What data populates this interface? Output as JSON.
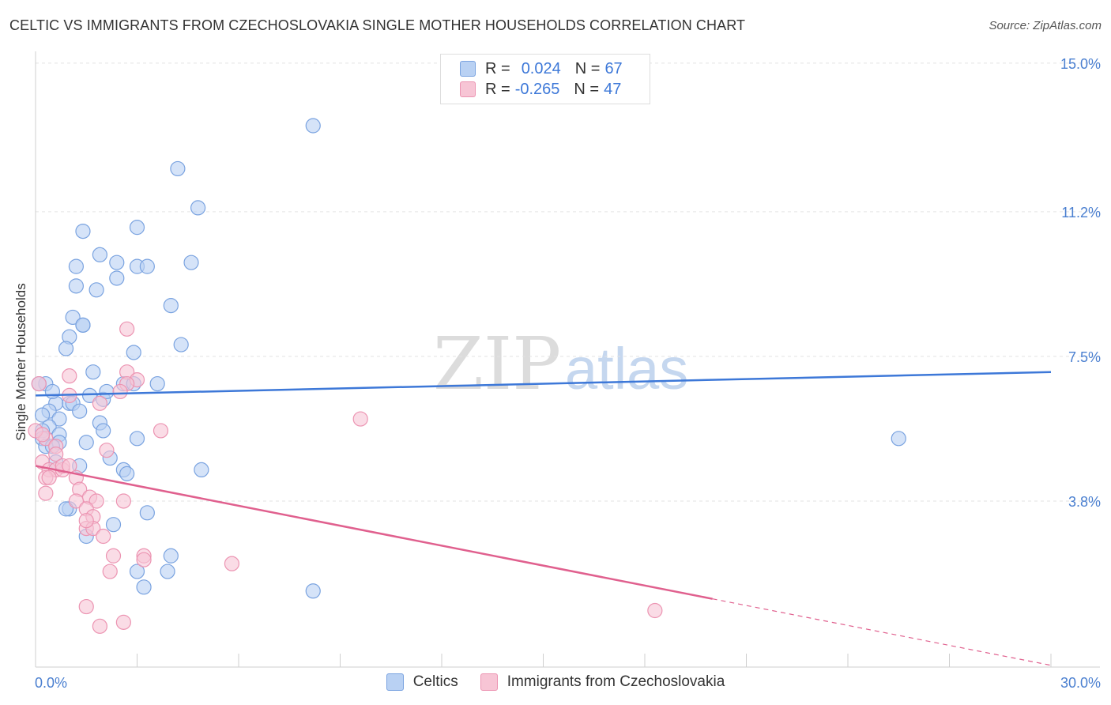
{
  "title": "CELTIC VS IMMIGRANTS FROM CZECHOSLOVAKIA SINGLE MOTHER HOUSEHOLDS CORRELATION CHART",
  "source": "Source: ZipAtlas.com",
  "watermark": {
    "zip": "ZIP",
    "atlas": "atlas"
  },
  "colors": {
    "blue": "#3d78d8",
    "blue_fill": "#b9d1f3",
    "pink": "#e0608e",
    "pink_fill": "#f7c5d5",
    "tick_label": "#4a7fd0"
  },
  "legend_top": {
    "rows": [
      {
        "r_label": "R =",
        "r_value": "0.024",
        "n_label": "N =",
        "n_value": "67"
      },
      {
        "r_label": "R =",
        "r_value": "-0.265",
        "n_label": "N =",
        "n_value": "47"
      }
    ]
  },
  "legend_bottom": {
    "celtics": "Celtics",
    "immigrants": "Immigrants from Czechoslovakia"
  },
  "chart_data": {
    "type": "scatter",
    "xlabel": "",
    "ylabel": "Single Mother Households",
    "xlim": [
      0,
      30
    ],
    "ylim": [
      0,
      15.3
    ],
    "x_tick_labels": [
      "0.0%",
      "30.0%"
    ],
    "y_ticks": [
      3.8,
      7.5,
      11.2,
      15.0
    ],
    "y_tick_labels": [
      "3.8%",
      "7.5%",
      "11.2%",
      "15.0%"
    ],
    "series": [
      {
        "name": "Celtics",
        "color": "#3d78d8",
        "trend": {
          "x": [
            0,
            30
          ],
          "y": [
            6.5,
            7.1
          ]
        },
        "points": [
          [
            8.2,
            13.4
          ],
          [
            4.2,
            12.3
          ],
          [
            4.8,
            11.3
          ],
          [
            3.0,
            10.8
          ],
          [
            1.4,
            10.7
          ],
          [
            1.9,
            10.1
          ],
          [
            2.4,
            9.9
          ],
          [
            3.0,
            9.8
          ],
          [
            1.2,
            9.8
          ],
          [
            3.3,
            9.8
          ],
          [
            4.6,
            9.9
          ],
          [
            2.4,
            9.5
          ],
          [
            1.2,
            9.3
          ],
          [
            1.8,
            9.2
          ],
          [
            4.0,
            8.8
          ],
          [
            1.1,
            8.5
          ],
          [
            1.4,
            8.3
          ],
          [
            1.4,
            8.3
          ],
          [
            1.0,
            8.0
          ],
          [
            0.9,
            7.7
          ],
          [
            2.9,
            7.6
          ],
          [
            4.3,
            7.8
          ],
          [
            1.7,
            7.1
          ],
          [
            0.3,
            6.8
          ],
          [
            2.6,
            6.8
          ],
          [
            2.9,
            6.8
          ],
          [
            3.6,
            6.8
          ],
          [
            1.6,
            6.5
          ],
          [
            2.0,
            6.4
          ],
          [
            2.1,
            6.6
          ],
          [
            0.6,
            6.3
          ],
          [
            1.0,
            6.3
          ],
          [
            1.1,
            6.3
          ],
          [
            0.4,
            6.1
          ],
          [
            0.2,
            6.0
          ],
          [
            0.7,
            5.9
          ],
          [
            1.3,
            6.1
          ],
          [
            1.9,
            5.8
          ],
          [
            0.4,
            5.7
          ],
          [
            0.2,
            5.6
          ],
          [
            0.2,
            5.4
          ],
          [
            0.7,
            5.5
          ],
          [
            2.0,
            5.6
          ],
          [
            3.0,
            5.4
          ],
          [
            0.7,
            5.3
          ],
          [
            1.5,
            5.3
          ],
          [
            0.3,
            5.2
          ],
          [
            0.5,
            5.2
          ],
          [
            0.6,
            4.8
          ],
          [
            2.2,
            4.9
          ],
          [
            1.3,
            4.7
          ],
          [
            2.6,
            4.6
          ],
          [
            2.7,
            4.5
          ],
          [
            4.9,
            4.6
          ],
          [
            1.0,
            3.6
          ],
          [
            0.9,
            3.6
          ],
          [
            3.3,
            3.5
          ],
          [
            2.3,
            3.2
          ],
          [
            1.5,
            2.9
          ],
          [
            4.0,
            2.4
          ],
          [
            3.0,
            2.0
          ],
          [
            3.9,
            2.0
          ],
          [
            3.2,
            1.6
          ],
          [
            8.2,
            1.5
          ],
          [
            25.5,
            5.4
          ],
          [
            0.1,
            6.8
          ],
          [
            0.5,
            6.6
          ]
        ]
      },
      {
        "name": "Immigrants from Czechoslovakia",
        "color": "#e0608e",
        "trend": {
          "x": [
            0,
            20
          ],
          "y": [
            4.7,
            1.3
          ]
        },
        "trend_dashed": {
          "x": [
            20,
            30
          ],
          "y": [
            1.3,
            -0.4
          ]
        },
        "points": [
          [
            0.1,
            6.8
          ],
          [
            1.0,
            7.0
          ],
          [
            2.7,
            7.1
          ],
          [
            3.0,
            6.9
          ],
          [
            2.7,
            6.8
          ],
          [
            1.0,
            6.5
          ],
          [
            2.5,
            6.6
          ],
          [
            1.9,
            6.3
          ],
          [
            3.7,
            5.6
          ],
          [
            9.6,
            5.9
          ],
          [
            2.7,
            8.2
          ],
          [
            0.3,
            5.4
          ],
          [
            0.6,
            5.2
          ],
          [
            0.6,
            5.0
          ],
          [
            2.1,
            5.1
          ],
          [
            0.2,
            4.8
          ],
          [
            0.4,
            4.6
          ],
          [
            0.6,
            4.6
          ],
          [
            0.8,
            4.6
          ],
          [
            0.8,
            4.7
          ],
          [
            1.0,
            4.7
          ],
          [
            0.3,
            4.4
          ],
          [
            0.4,
            4.4
          ],
          [
            1.2,
            4.4
          ],
          [
            1.3,
            4.1
          ],
          [
            0.3,
            4.0
          ],
          [
            1.6,
            3.9
          ],
          [
            1.2,
            3.8
          ],
          [
            1.8,
            3.8
          ],
          [
            2.6,
            3.8
          ],
          [
            1.5,
            3.6
          ],
          [
            1.7,
            3.4
          ],
          [
            1.5,
            3.1
          ],
          [
            1.7,
            3.1
          ],
          [
            1.5,
            3.3
          ],
          [
            2.0,
            2.9
          ],
          [
            2.3,
            2.4
          ],
          [
            3.2,
            2.4
          ],
          [
            3.2,
            2.3
          ],
          [
            2.2,
            2.0
          ],
          [
            5.8,
            2.2
          ],
          [
            1.5,
            1.1
          ],
          [
            1.9,
            0.6
          ],
          [
            2.6,
            0.7
          ],
          [
            18.3,
            1.0
          ],
          [
            0.0,
            5.6
          ],
          [
            0.2,
            5.5
          ]
        ]
      }
    ]
  }
}
